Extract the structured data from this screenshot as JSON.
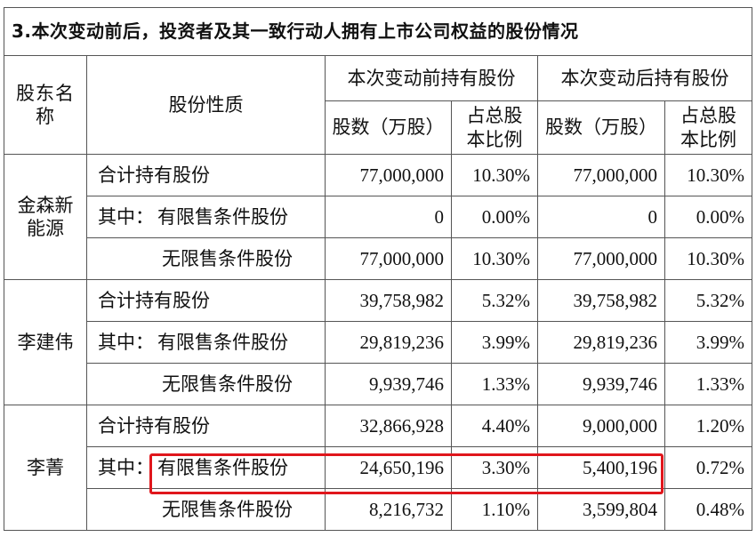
{
  "title": "3.本次变动前后，投资者及其一致行动人拥有上市公司权益的股份情况",
  "headers": {
    "holder": "股东名称",
    "nature": "股份性质",
    "before": "本次变动前持有股份",
    "after": "本次变动后持有股份",
    "shares": "股数（万股）",
    "ratio": "占总股本比例"
  },
  "groups": [
    {
      "holder": "金森新能源",
      "rows": [
        {
          "nature": "合计持有股份",
          "before_shares": "77,000,000",
          "before_ratio": "10.30%",
          "after_shares": "77,000,000",
          "after_ratio": "10.30%"
        },
        {
          "prefix": "其中：",
          "nature": "有限售条件股份",
          "before_shares": "0",
          "before_ratio": "0.00%",
          "after_shares": "0",
          "after_ratio": "0.00%"
        },
        {
          "nature": "无限售条件股份",
          "before_shares": "77,000,000",
          "before_ratio": "10.30%",
          "after_shares": "77,000,000",
          "after_ratio": "10.30%"
        }
      ]
    },
    {
      "holder": "李建伟",
      "rows": [
        {
          "nature": "合计持有股份",
          "before_shares": "39,758,982",
          "before_ratio": "5.32%",
          "after_shares": "39,758,982",
          "after_ratio": "5.32%"
        },
        {
          "prefix": "其中：",
          "nature": "有限售条件股份",
          "before_shares": "29,819,236",
          "before_ratio": "3.99%",
          "after_shares": "29,819,236",
          "after_ratio": "3.99%"
        },
        {
          "nature": "无限售条件股份",
          "before_shares": "9,939,746",
          "before_ratio": "1.33%",
          "after_shares": "9,939,746",
          "after_ratio": "1.33%"
        }
      ]
    },
    {
      "holder": "李菁",
      "rows": [
        {
          "nature": "合计持有股份",
          "before_shares": "32,866,928",
          "before_ratio": "4.40%",
          "after_shares": "9,000,000",
          "after_ratio": "1.20%"
        },
        {
          "prefix": "其中：",
          "nature": "有限售条件股份",
          "before_shares": "24,650,196",
          "before_ratio": "3.30%",
          "after_shares": "5,400,196",
          "after_ratio": "0.72%"
        },
        {
          "nature": "无限售条件股份",
          "before_shares": "8,216,732",
          "before_ratio": "1.10%",
          "after_shares": "3,599,804",
          "after_ratio": "0.48%"
        }
      ]
    }
  ],
  "highlight_color": "#e0161c"
}
